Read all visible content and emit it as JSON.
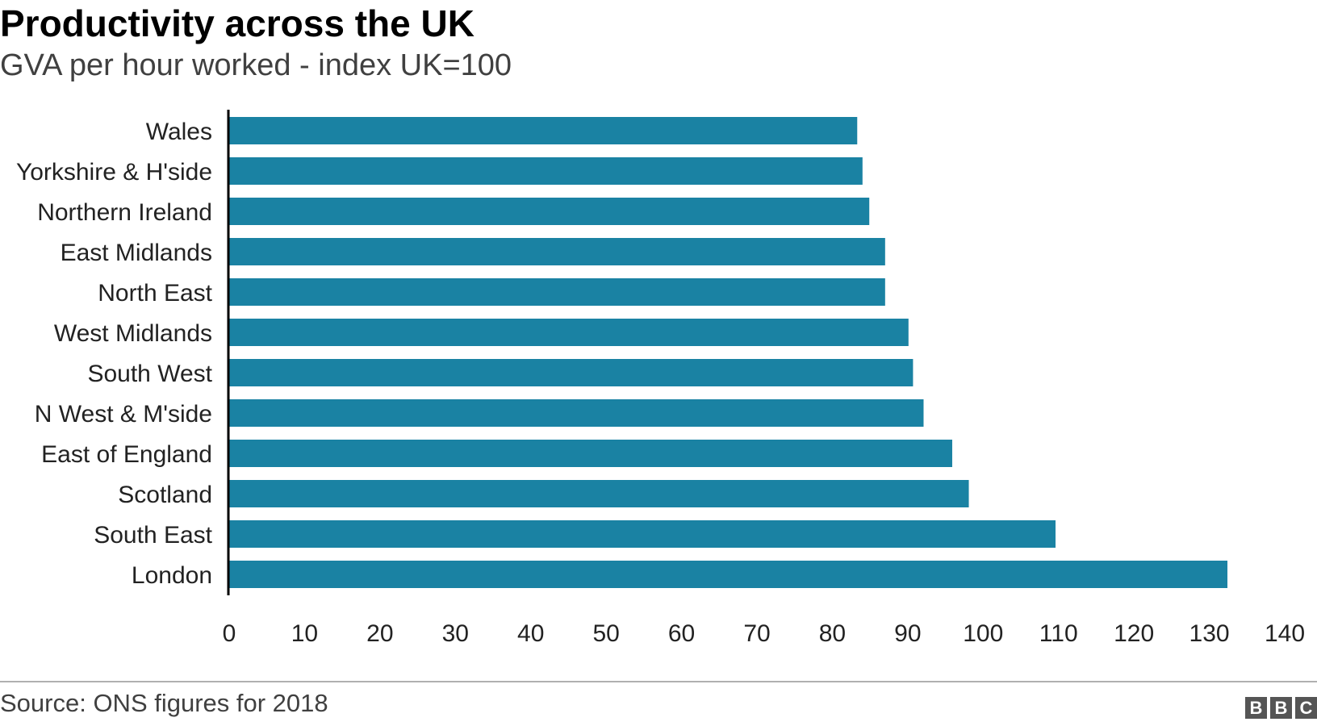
{
  "title": "Productivity across the UK",
  "subtitle": "GVA per hour worked - index UK=100",
  "source": "Source: ONS figures for 2018",
  "logo": {
    "letters": [
      "B",
      "B",
      "C"
    ],
    "icon": "bbc-logo"
  },
  "colors": {
    "bar": "#1a82a3",
    "axis": "#000000",
    "text": "#222222"
  },
  "chart_data": {
    "type": "bar",
    "orientation": "horizontal",
    "title": "Productivity across the UK",
    "subtitle": "GVA per hour worked - index UK=100",
    "categories": [
      "Wales",
      "Yorkshire & H'side",
      "Northern Ireland",
      "East Midlands",
      "North East",
      "West Midlands",
      "South West",
      "N West & M'side",
      "East of England",
      "Scotland",
      "South East",
      "London"
    ],
    "values": [
      83.3,
      84.0,
      84.9,
      87.0,
      87.0,
      90.1,
      90.7,
      92.1,
      95.9,
      98.1,
      109.6,
      132.4
    ],
    "xlim": [
      0,
      140
    ],
    "xticks": [
      0,
      10,
      20,
      30,
      40,
      50,
      60,
      70,
      80,
      90,
      100,
      110,
      120,
      130,
      140
    ],
    "grid": false,
    "legend": "none"
  }
}
